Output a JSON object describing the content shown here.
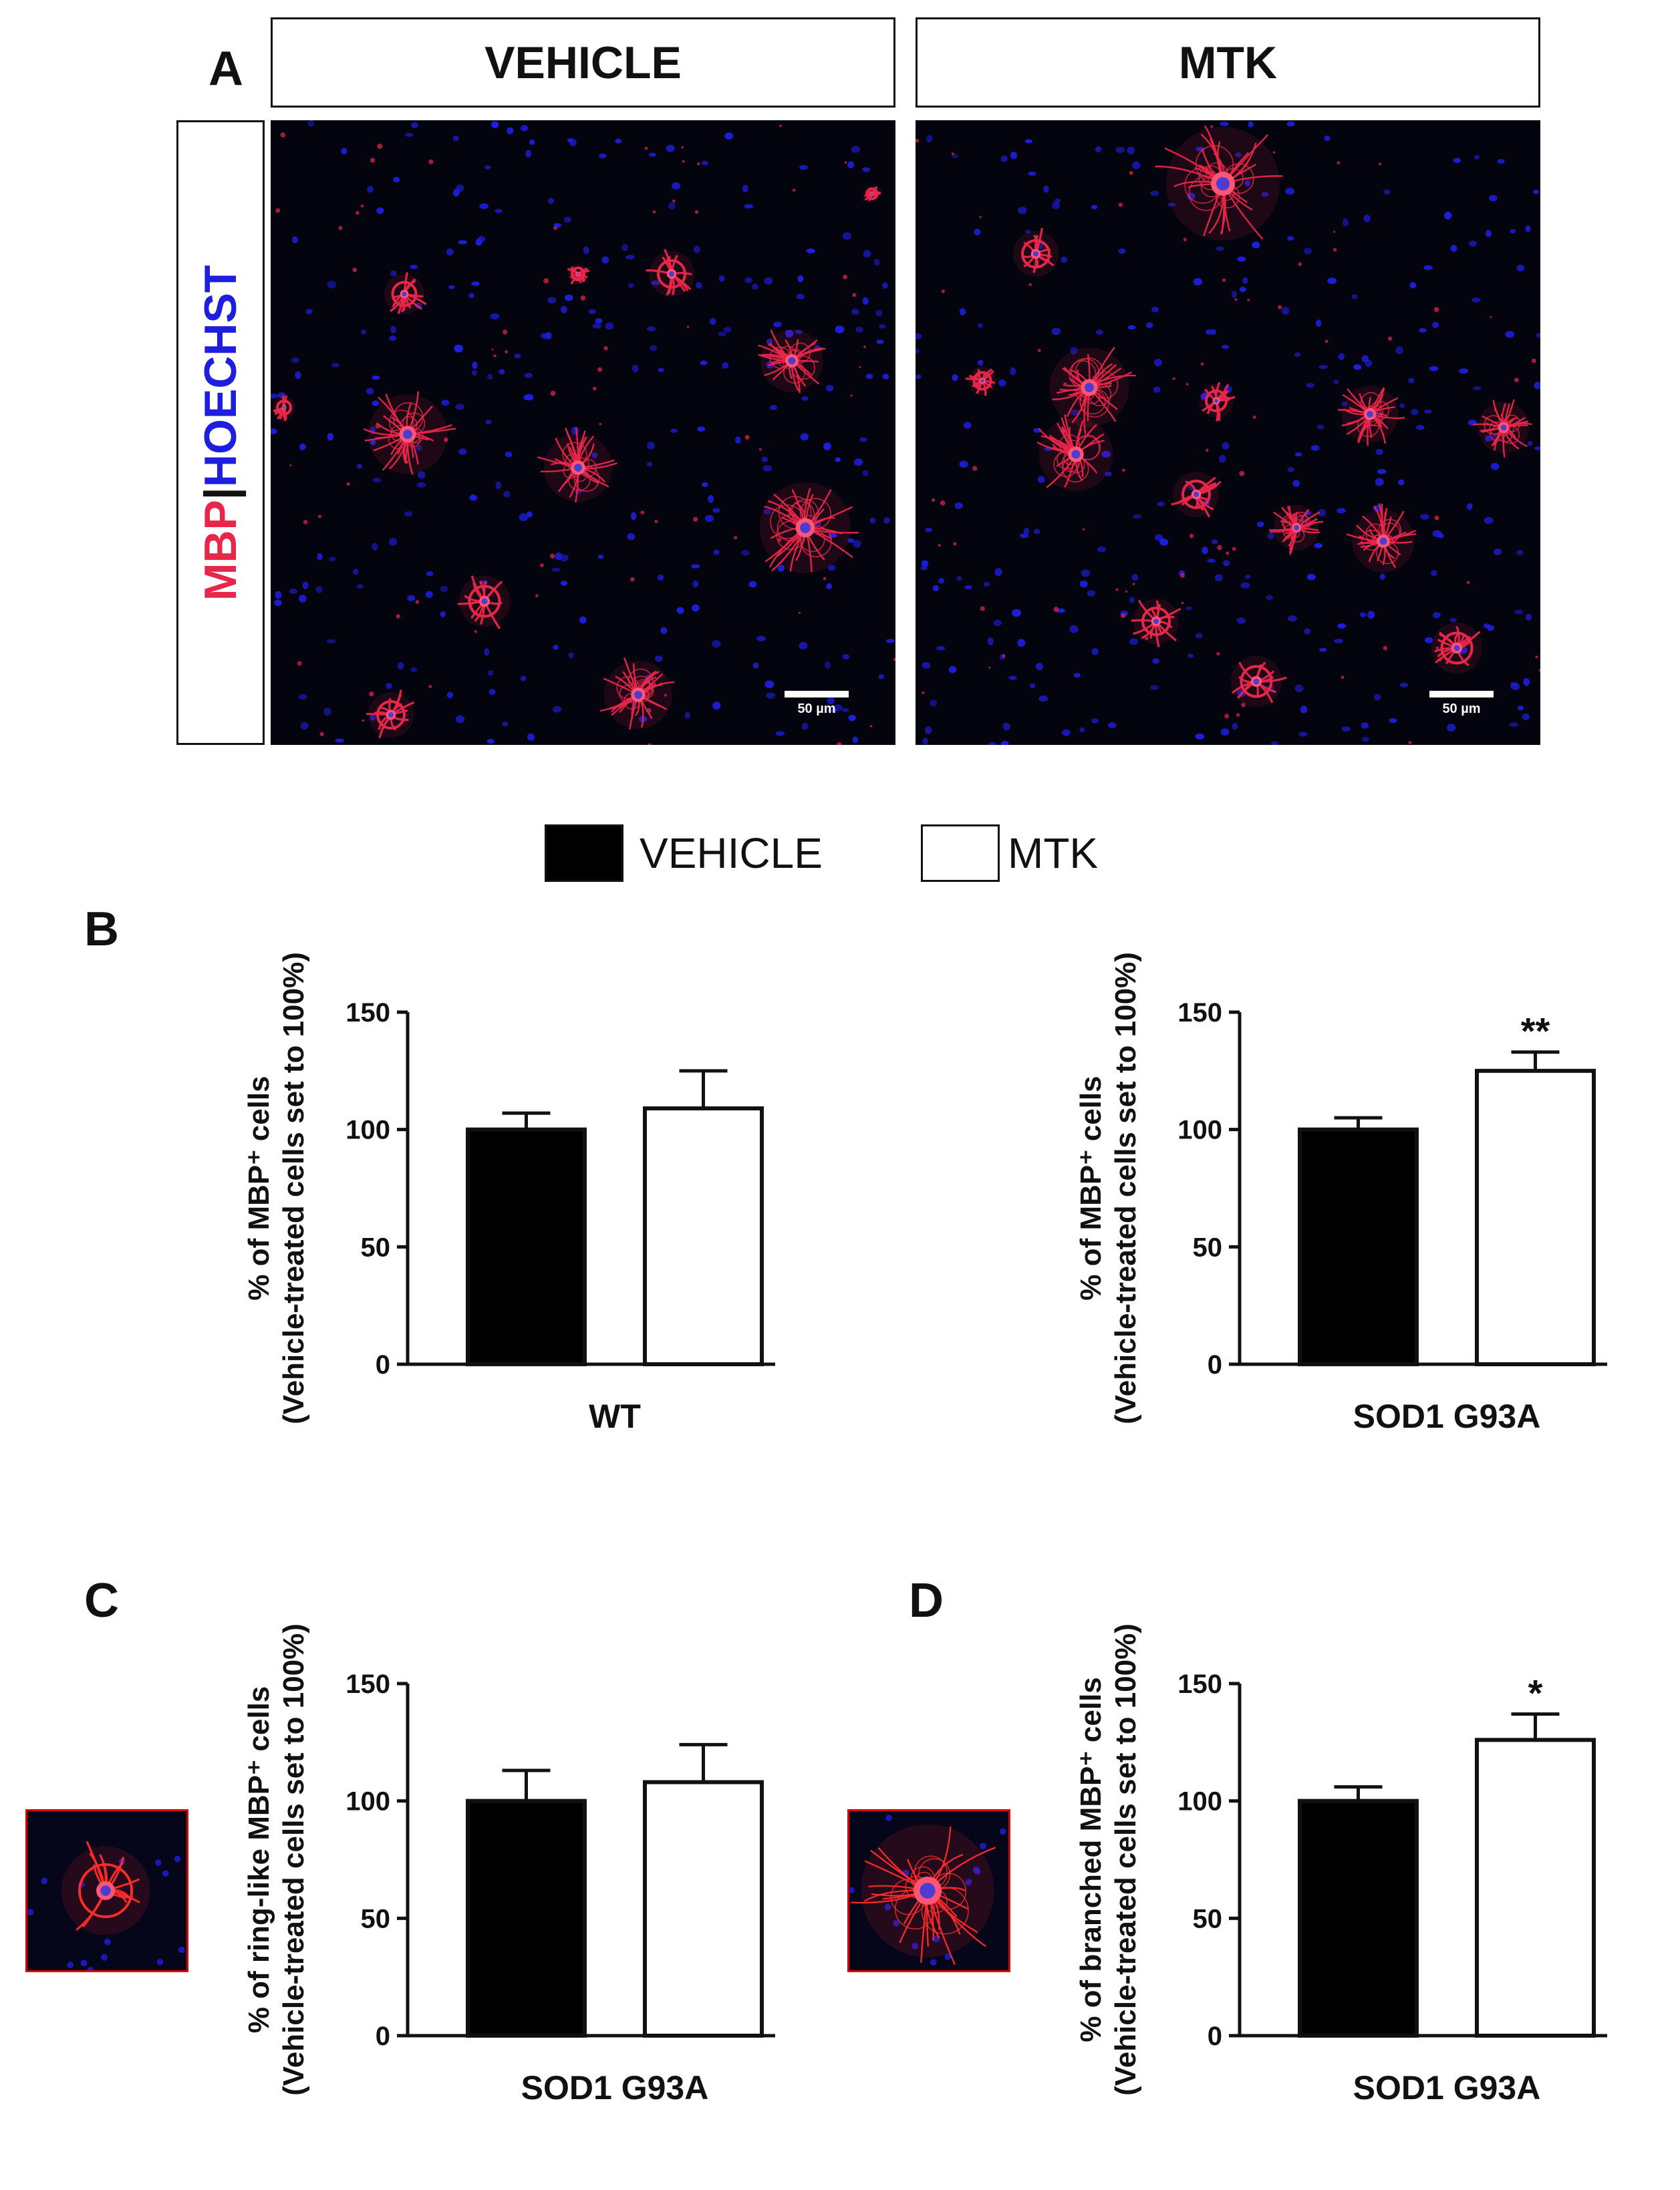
{
  "panel_a": {
    "letter": "A",
    "stain_label_mbp": "MBP",
    "stain_label_sep": "|",
    "stain_label_hoechst": "HOECHST",
    "images": [
      {
        "header": "VEHICLE",
        "scale_bar": "50 µm"
      },
      {
        "header": "MTK",
        "scale_bar": "50 µm"
      }
    ]
  },
  "legend": [
    {
      "label": "VEHICLE",
      "color": "#000000"
    },
    {
      "label": "MTK",
      "color": "#ffffff"
    }
  ],
  "colors": {
    "mbp": "#e8264a",
    "hoechst": "#1e1ee0",
    "bar_vehicle": "#000000",
    "bar_mtk": "#ffffff"
  },
  "panel_letters": {
    "b": "B",
    "c": "C",
    "d": "D"
  },
  "chart_data": [
    {
      "type": "bar",
      "ylabel_line1": "% of MBP⁺ cells",
      "ylabel_line2": "(Vehicle-treated cells set to 100%)",
      "xlabel": "WT",
      "ylim": [
        0,
        150
      ],
      "yticks": [
        "0",
        "50",
        "100",
        "150"
      ],
      "series": [
        {
          "name": "VEHICLE",
          "value": 100,
          "error": 7
        },
        {
          "name": "MTK",
          "value": 109,
          "error": 16
        }
      ],
      "significance": ""
    },
    {
      "type": "bar",
      "ylabel_line1": "% of MBP⁺ cells",
      "ylabel_line2": "(Vehicle-treated cells set to 100%)",
      "xlabel": "SOD1 G93A",
      "ylim": [
        0,
        150
      ],
      "yticks": [
        "0",
        "50",
        "100",
        "150"
      ],
      "series": [
        {
          "name": "VEHICLE",
          "value": 100,
          "error": 5
        },
        {
          "name": "MTK",
          "value": 125,
          "error": 8
        }
      ],
      "significance": "**"
    },
    {
      "type": "bar",
      "ylabel_line1": "% of ring-like MBP⁺ cells",
      "ylabel_line2": "(Vehicle-treated cells set to 100%)",
      "xlabel": "SOD1 G93A",
      "ylim": [
        0,
        150
      ],
      "yticks": [
        "0",
        "50",
        "100",
        "150"
      ],
      "series": [
        {
          "name": "VEHICLE",
          "value": 100,
          "error": 13
        },
        {
          "name": "MTK",
          "value": 108,
          "error": 16
        }
      ],
      "significance": ""
    },
    {
      "type": "bar",
      "ylabel_line1": "% of branched MBP⁺ cells",
      "ylabel_line2": "(Vehicle-treated cells set to 100%)",
      "xlabel": "SOD1 G93A",
      "ylim": [
        0,
        150
      ],
      "yticks": [
        "0",
        "50",
        "100",
        "150"
      ],
      "series": [
        {
          "name": "VEHICLE",
          "value": 100,
          "error": 6
        },
        {
          "name": "MTK",
          "value": 126,
          "error": 11
        }
      ],
      "significance": "*"
    }
  ]
}
